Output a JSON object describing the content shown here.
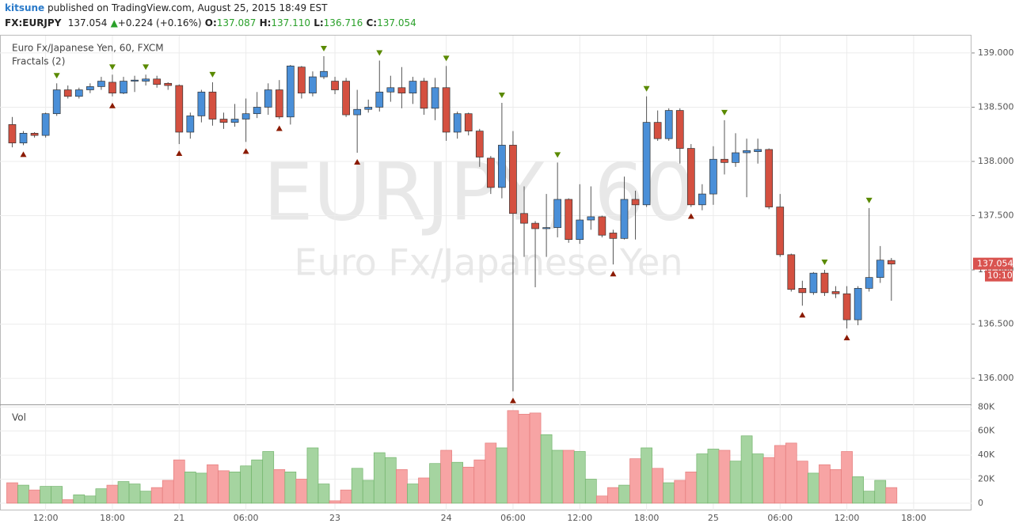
{
  "header": {
    "user": "kitsune",
    "published": "published on TradingView.com, August 25, 2015 18:49 EST",
    "symbol": "FX:EURJPY",
    "last": "137.054",
    "arrow": "▲",
    "change": "+0.224 (+0.16%)",
    "o_label": "O:",
    "open": "137.087",
    "h_label": "H:",
    "high": "137.110",
    "l_label": "L:",
    "low": "136.716",
    "c_label": "C:",
    "close": "137.054"
  },
  "chart_data": {
    "type": "candlestick",
    "legend_title": "Euro Fx/Japanese Yen, 60, FXCM",
    "indicator": "Fractals (2)",
    "watermark": "EURJPY, 60",
    "watermark_sub": "Euro Fx/Japanese Yen",
    "countdown": "10:10",
    "up_color": "#4a8fd8",
    "down_color": "#d45040",
    "open": [
      138.34,
      138.17,
      138.26,
      138.24,
      138.44,
      138.66,
      138.6,
      138.66,
      138.69,
      138.73,
      138.63,
      138.74,
      138.74,
      138.76,
      138.72,
      138.7,
      138.27,
      138.42,
      138.64,
      138.39,
      138.36,
      138.39,
      138.44,
      138.5,
      138.66,
      138.41,
      138.87,
      138.63,
      138.78,
      138.74,
      138.74,
      138.43,
      138.48,
      138.5,
      138.64,
      138.68,
      138.63,
      138.74,
      138.49,
      138.68,
      138.27,
      138.44,
      138.28,
      138.03,
      137.76,
      138.15,
      137.52,
      137.43,
      137.38,
      137.39,
      137.65,
      137.28,
      137.46,
      137.49,
      137.34,
      137.29,
      137.65,
      137.6,
      138.36,
      138.21,
      138.47,
      138.12,
      137.6,
      137.7,
      138.02,
      137.99,
      138.08,
      138.09,
      138.11,
      137.58,
      137.14,
      136.83,
      136.79,
      136.97,
      136.8,
      136.78,
      136.54,
      136.83,
      136.93,
      137.087
    ],
    "high": [
      138.41,
      138.28,
      138.27,
      138.45,
      138.72,
      138.7,
      138.68,
      138.72,
      138.78,
      138.8,
      138.78,
      138.79,
      138.8,
      138.79,
      138.73,
      138.71,
      138.45,
      138.66,
      138.73,
      138.45,
      138.53,
      138.58,
      138.64,
      138.72,
      138.75,
      138.89,
      138.88,
      138.83,
      138.97,
      138.78,
      138.77,
      138.66,
      138.57,
      138.93,
      138.79,
      138.87,
      138.78,
      138.77,
      138.77,
      138.88,
      138.46,
      138.45,
      138.3,
      138.05,
      138.54,
      138.28,
      137.77,
      137.45,
      137.7,
      137.99,
      137.66,
      137.79,
      137.77,
      137.5,
      137.37,
      137.86,
      137.73,
      138.6,
      138.47,
      138.49,
      138.49,
      138.16,
      137.79,
      138.14,
      138.38,
      138.26,
      138.21,
      138.21,
      138.12,
      137.7,
      137.15,
      136.9,
      136.98,
      137.0,
      136.85,
      136.85,
      136.85,
      137.57,
      137.22,
      137.11
    ],
    "low": [
      138.13,
      138.15,
      138.22,
      138.22,
      138.42,
      138.58,
      138.58,
      138.63,
      138.66,
      138.6,
      138.62,
      138.64,
      138.7,
      138.68,
      138.66,
      138.16,
      138.21,
      138.36,
      138.33,
      138.3,
      138.32,
      138.18,
      138.4,
      138.43,
      138.39,
      138.34,
      138.58,
      138.6,
      138.76,
      138.62,
      138.41,
      138.08,
      138.45,
      138.46,
      138.55,
      138.49,
      138.53,
      138.43,
      138.38,
      138.19,
      138.21,
      138.24,
      137.95,
      137.7,
      137.66,
      135.88,
      137.12,
      136.84,
      137.12,
      137.3,
      137.25,
      137.24,
      137.37,
      137.3,
      137.05,
      137.28,
      137.28,
      137.58,
      138.19,
      138.19,
      137.98,
      137.58,
      137.55,
      137.6,
      137.88,
      137.95,
      137.67,
      137.98,
      137.56,
      137.12,
      136.8,
      136.67,
      136.77,
      136.76,
      136.74,
      136.46,
      136.49,
      136.8,
      136.88,
      136.716
    ],
    "close": [
      138.17,
      138.26,
      138.24,
      138.44,
      138.66,
      138.6,
      138.66,
      138.69,
      138.74,
      138.63,
      138.74,
      138.75,
      138.76,
      138.71,
      138.7,
      138.27,
      138.42,
      138.64,
      138.39,
      138.36,
      138.39,
      138.44,
      138.5,
      138.66,
      138.41,
      138.88,
      138.63,
      138.78,
      138.83,
      138.66,
      138.43,
      138.48,
      138.5,
      138.64,
      138.68,
      138.63,
      138.74,
      138.49,
      138.68,
      138.27,
      138.44,
      138.28,
      138.04,
      137.76,
      138.15,
      137.52,
      137.43,
      137.38,
      137.39,
      137.65,
      137.28,
      137.46,
      137.49,
      137.32,
      137.29,
      137.65,
      137.6,
      138.36,
      138.21,
      138.47,
      138.12,
      137.6,
      137.7,
      138.02,
      137.99,
      138.08,
      138.1,
      138.11,
      137.58,
      137.14,
      136.82,
      136.79,
      136.97,
      136.79,
      136.78,
      136.54,
      136.83,
      136.93,
      137.09,
      137.054
    ],
    "ylim": [
      135.76,
      139.16
    ],
    "yticks": [
      {
        "value": 136,
        "label": "136.000"
      },
      {
        "value": 136.5,
        "label": "136.500"
      },
      {
        "value": 137,
        "label": "137.000"
      },
      {
        "value": 137.5,
        "label": "137.500"
      },
      {
        "value": 138,
        "label": "138.000"
      },
      {
        "value": 138.5,
        "label": "138.500"
      },
      {
        "value": 139,
        "label": "139.000"
      }
    ],
    "xlim": [
      -1.1,
      86.2
    ],
    "xticks": [
      {
        "value": 3,
        "label": "12:00"
      },
      {
        "value": 9,
        "label": "18:00"
      },
      {
        "value": 15,
        "label": "21"
      },
      {
        "value": 21,
        "label": "06:00"
      },
      {
        "value": 29,
        "label": "23"
      },
      {
        "value": 39,
        "label": "24"
      },
      {
        "value": 45,
        "label": "06:00"
      },
      {
        "value": 51,
        "label": "12:00"
      },
      {
        "value": 57,
        "label": "18:00"
      },
      {
        "value": 63,
        "label": "25"
      },
      {
        "value": 69,
        "label": "06:00"
      },
      {
        "value": 75,
        "label": "12:00"
      },
      {
        "value": 81,
        "label": "18:00"
      }
    ],
    "fractals": {
      "up": [
        4,
        9,
        12,
        18,
        28,
        33,
        39,
        44,
        49,
        57,
        64,
        73,
        77
      ],
      "down": [
        1,
        9,
        15,
        21,
        24,
        31,
        45,
        54,
        61,
        71,
        75
      ]
    },
    "volume": {
      "label": "Vol",
      "values": [
        17,
        15,
        11,
        14,
        14,
        3,
        7,
        6,
        12,
        15,
        18,
        16,
        10,
        13,
        19,
        36,
        26,
        25,
        32,
        27,
        26,
        31,
        36,
        43,
        28,
        26,
        20,
        46,
        16,
        2,
        11,
        29,
        19,
        42,
        38,
        28,
        16,
        21,
        33,
        44,
        34,
        30,
        36,
        50,
        46,
        77,
        74,
        75,
        57,
        44,
        44,
        43,
        20,
        6,
        13,
        15,
        37,
        46,
        29,
        17,
        19,
        26,
        41,
        45,
        44,
        35,
        56,
        41,
        38,
        48,
        50,
        35,
        25,
        32,
        28,
        43,
        22,
        10,
        19,
        13
      ],
      "up_color": "#a5d4a0",
      "down_color": "#f7a4a4",
      "ylim": [
        -6,
        81.5
      ],
      "yticks": [
        0,
        {
          "value": 20,
          "label": "20K"
        },
        {
          "value": 40,
          "label": "40K"
        },
        {
          "value": 60,
          "label": "60K"
        },
        {
          "value": 80,
          "label": "80K"
        }
      ]
    }
  }
}
